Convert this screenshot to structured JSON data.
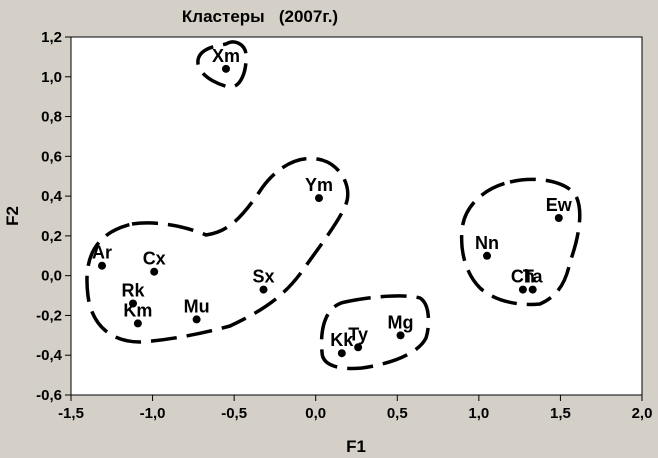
{
  "chart_data": {
    "type": "scatter",
    "title": "Кластеры   (2007г.)",
    "xlabel": "F1",
    "ylabel": "F2",
    "xlim": [
      -1.5,
      2.0
    ],
    "ylim": [
      -0.6,
      1.2
    ],
    "x_ticks": [
      "-1,5",
      "-1,0",
      "-0,5",
      "0,0",
      "0,5",
      "1,0",
      "1,5",
      "2,0"
    ],
    "y_ticks": [
      "-0,6",
      "-0,4",
      "-0,2",
      "0,0",
      "0,2",
      "0,4",
      "0,6",
      "0,8",
      "1,0",
      "1,2"
    ],
    "grid": false,
    "legend": "none",
    "point_color": "#000000",
    "points": [
      {
        "label": "Xm",
        "x": -0.55,
        "y": 1.04
      },
      {
        "label": "Ym",
        "x": 0.02,
        "y": 0.39
      },
      {
        "label": "Ar",
        "x": -1.31,
        "y": 0.05
      },
      {
        "label": "Cx",
        "x": -0.99,
        "y": 0.02
      },
      {
        "label": "Rk",
        "x": -1.12,
        "y": -0.14
      },
      {
        "label": "Km",
        "x": -1.09,
        "y": -0.24
      },
      {
        "label": "Mu",
        "x": -0.73,
        "y": -0.22
      },
      {
        "label": "Sx",
        "x": -0.32,
        "y": -0.07
      },
      {
        "label": "Kk",
        "x": 0.16,
        "y": -0.39
      },
      {
        "label": "Ty",
        "x": 0.26,
        "y": -0.36
      },
      {
        "label": "Mg",
        "x": 0.52,
        "y": -0.3
      },
      {
        "label": "Nn",
        "x": 1.05,
        "y": 0.1
      },
      {
        "label": "Ew",
        "x": 1.49,
        "y": 0.29
      },
      {
        "label": "Ch",
        "x": 1.27,
        "y": -0.07
      },
      {
        "label": "Ta",
        "x": 1.33,
        "y": -0.07
      }
    ],
    "cluster_outline_style": "dashed"
  }
}
